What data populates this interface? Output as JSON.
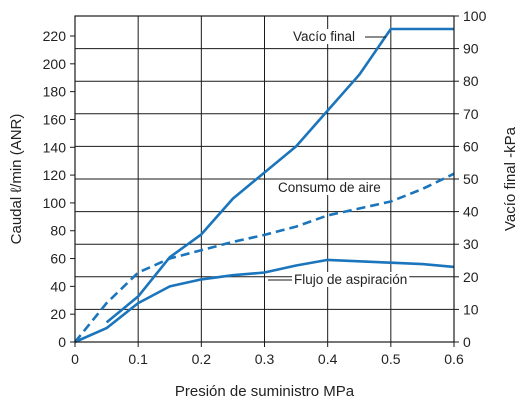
{
  "colors": {
    "series": "#1b75bc",
    "grid": "#1a1a1a",
    "text": "#222222"
  },
  "chart_data": {
    "type": "line",
    "title": "",
    "xlabel": "Presión de suministro MPa",
    "ylabel": "Caudal ℓ/min (ANR)",
    "y2label": "Vacío final  -kPa",
    "xlim": [
      0,
      0.6
    ],
    "ylim": [
      0,
      240
    ],
    "y2lim": [
      0,
      100
    ],
    "grid": true,
    "x_ticks": [
      "0",
      "0.1",
      "0.2",
      "0.3",
      "0.4",
      "0.5",
      "0.6"
    ],
    "y_ticks": [
      "0",
      "20",
      "40",
      "60",
      "80",
      "100",
      "120",
      "140",
      "160",
      "180",
      "200",
      "220"
    ],
    "y2_ticks": [
      "0",
      "10",
      "20",
      "30",
      "40",
      "50",
      "60",
      "70",
      "80",
      "90",
      "100"
    ],
    "series": [
      {
        "name": "Vacío final",
        "axis": "right",
        "dash": "solid",
        "x": [
          0.05,
          0.1,
          0.15,
          0.2,
          0.25,
          0.3,
          0.35,
          0.4,
          0.45,
          0.5,
          0.6
        ],
        "values": [
          6,
          14,
          26,
          33,
          44,
          52,
          60,
          71,
          82,
          96,
          96
        ]
      },
      {
        "name": "Consumo de aire",
        "axis": "left",
        "dash": "dashed",
        "x": [
          0,
          0.05,
          0.1,
          0.15,
          0.2,
          0.25,
          0.3,
          0.35,
          0.4,
          0.45,
          0.5,
          0.55,
          0.6
        ],
        "values": [
          0,
          28,
          50,
          60,
          66,
          72,
          77,
          83,
          91,
          96,
          101,
          110,
          121
        ]
      },
      {
        "name": "Flujo de aspiración",
        "axis": "left",
        "dash": "solid",
        "x": [
          0,
          0.05,
          0.1,
          0.15,
          0.2,
          0.25,
          0.3,
          0.35,
          0.4,
          0.45,
          0.5,
          0.55,
          0.6
        ],
        "values": [
          0,
          10,
          28,
          40,
          45,
          48,
          50,
          55,
          59,
          58,
          57,
          56,
          54
        ]
      }
    ],
    "annotations": [
      {
        "text": "Vacío final",
        "series": 0
      },
      {
        "text": "Consumo de aire",
        "series": 1
      },
      {
        "text": "Flujo de aspiración",
        "series": 2
      }
    ]
  }
}
